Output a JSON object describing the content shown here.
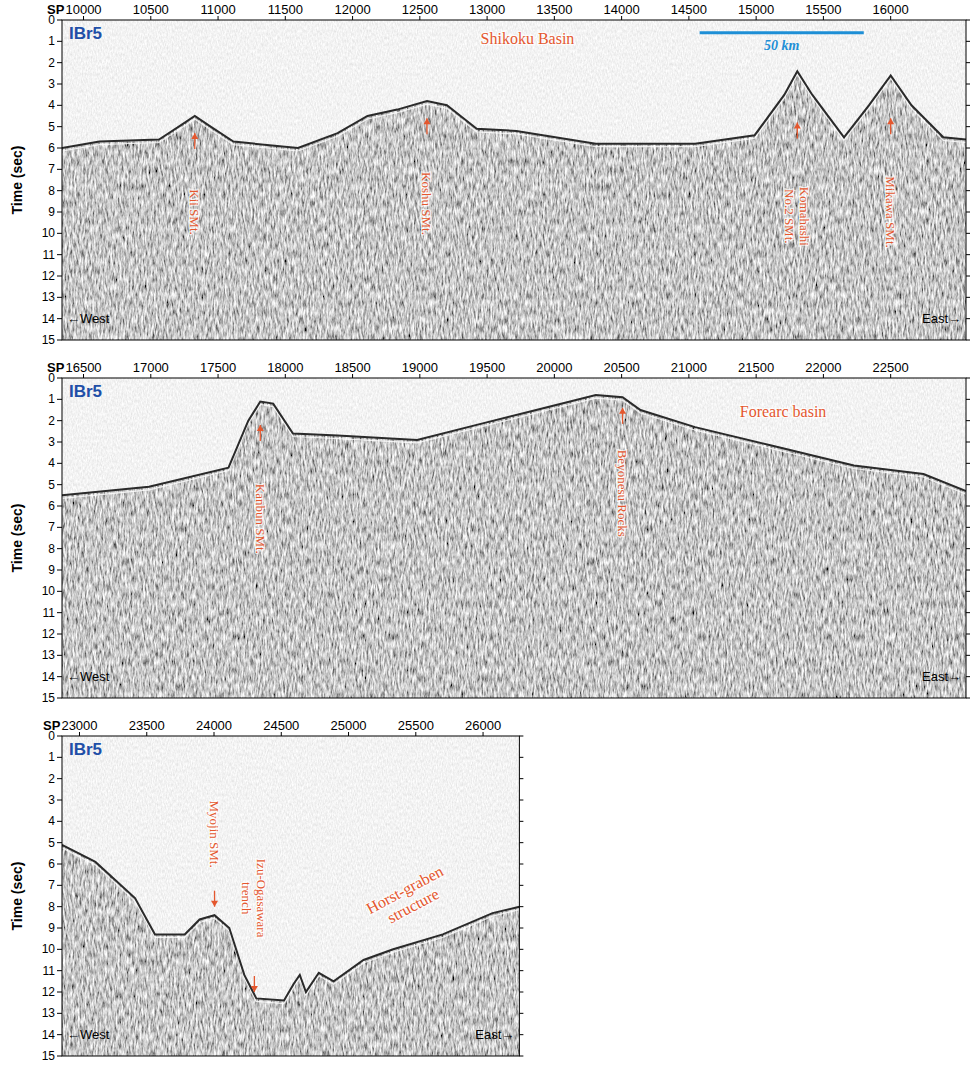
{
  "chart_data": [
    {
      "type": "line",
      "panel_label": "IBr5",
      "x_label": "SP",
      "y_label": "Time (sec)",
      "color": "#2a2a2a",
      "xlim": [
        9840,
        16560
      ],
      "ylim": [
        15,
        0
      ],
      "xticks": [
        10000,
        10500,
        11000,
        11500,
        12000,
        12500,
        13000,
        13500,
        14000,
        14500,
        15000,
        15500,
        16000
      ],
      "yticks": [
        0,
        1,
        2,
        3,
        4,
        5,
        6,
        7,
        8,
        9,
        10,
        11,
        12,
        13,
        14,
        15
      ],
      "x": [
        9840,
        10118,
        10561,
        10708,
        10827,
        10945,
        11114,
        11594,
        11889,
        12111,
        12332,
        12553,
        12701,
        12923,
        13218,
        13808,
        14546,
        14989,
        15210,
        15306,
        15417,
        15653,
        15838,
        16000,
        16155,
        16391,
        16560
      ],
      "values": [
        6.0,
        5.7,
        5.6,
        5.0,
        4.5,
        5.0,
        5.7,
        6.0,
        5.3,
        4.5,
        4.2,
        3.8,
        4.0,
        5.1,
        5.2,
        5.8,
        5.8,
        5.4,
        3.5,
        2.4,
        3.5,
        5.5,
        4.0,
        2.6,
        4.0,
        5.5,
        5.6
      ],
      "labels": [
        {
          "text": "Shikoku Basin",
          "x": 13300,
          "y": 0.9
        }
      ],
      "scale_bar": {
        "label": "50 km",
        "x": [
          14580,
          15800
        ],
        "y": 0.6
      },
      "annotations": [
        {
          "text": "Kii SMt.",
          "x": 10827,
          "y": 5.3,
          "text_y": 9.0
        },
        {
          "text": "Koshu SMt.",
          "x": 12553,
          "y": 4.6,
          "text_y": 8.6
        },
        {
          "text": "Komahashi No.2 SMt.",
          "x": 15306,
          "y": 4.8,
          "text_y": 9.2
        },
        {
          "text": "Mikawa SMt.",
          "x": 16000,
          "y": 4.6,
          "text_y": 9.0
        }
      ],
      "west_label": "←West",
      "east_label": "East→"
    },
    {
      "type": "line",
      "panel_label": "IBr5",
      "x_label": "SP",
      "y_label": "Time (sec)",
      "color": "#2a2a2a",
      "xlim": [
        16340,
        23060
      ],
      "ylim": [
        15,
        0
      ],
      "xticks": [
        16500,
        17000,
        17500,
        18000,
        18500,
        19000,
        19500,
        20000,
        20500,
        21000,
        21500,
        22000,
        22500
      ],
      "yticks": [
        0,
        1,
        2,
        3,
        4,
        5,
        6,
        7,
        8,
        9,
        10,
        11,
        12,
        13,
        14,
        15
      ],
      "x": [
        16340,
        16987,
        17578,
        17725,
        17814,
        17910,
        18057,
        18390,
        18980,
        19423,
        19865,
        20308,
        20507,
        20640,
        21046,
        21637,
        22227,
        22744,
        23060
      ],
      "values": [
        5.5,
        5.1,
        4.2,
        2.0,
        1.1,
        1.2,
        2.6,
        2.7,
        2.9,
        2.2,
        1.5,
        0.8,
        0.9,
        1.5,
        2.3,
        3.2,
        4.1,
        4.5,
        5.3
      ],
      "labels": [
        {
          "text": "Forearc basin",
          "x": 21700,
          "y": 1.6
        }
      ],
      "annotations": [
        {
          "text": "Kanbun SMt.",
          "x": 17814,
          "y": 2.2,
          "text_y": 6.6
        },
        {
          "text": "Beyonesu Rocks",
          "x": 20507,
          "y": 1.4,
          "text_y": 5.4
        }
      ],
      "west_label": "←West",
      "east_label": "East→"
    },
    {
      "type": "line",
      "panel_label": "IBr5",
      "x_label": "SP",
      "y_label": "Time (sec)",
      "color": "#2a2a2a",
      "xlim": [
        22870,
        26270
      ],
      "ylim": [
        15,
        0
      ],
      "xticks": [
        23000,
        23500,
        24000,
        24500,
        25000,
        25500,
        26000
      ],
      "yticks": [
        0,
        1,
        2,
        3,
        4,
        5,
        6,
        7,
        8,
        9,
        10,
        11,
        12,
        13,
        14,
        15
      ],
      "x": [
        22870,
        23118,
        23413,
        23561,
        23782,
        23893,
        24004,
        24114,
        24225,
        24314,
        24520,
        24594,
        24638,
        24683,
        24779,
        24889,
        25111,
        25332,
        25701,
        26070,
        26270
      ],
      "values": [
        5.1,
        5.9,
        7.6,
        9.3,
        9.3,
        8.6,
        8.4,
        9.0,
        11.2,
        12.3,
        12.4,
        11.6,
        11.2,
        12.0,
        11.1,
        11.5,
        10.5,
        10.0,
        9.3,
        8.3,
        8.0
      ],
      "labels": [
        {
          "text": "Horst-graben structure",
          "x": 25450,
          "y": 7.6
        }
      ],
      "annotations": [
        {
          "text": "Myojin SMt.",
          "x": 24004,
          "y": 8.0,
          "text_y": 4.6
        },
        {
          "text": "Izu-Ogasawara trench",
          "x": 24300,
          "y": 12.0,
          "text_y": 7.6
        }
      ],
      "west_label": "←West",
      "east_label": "East→"
    }
  ]
}
